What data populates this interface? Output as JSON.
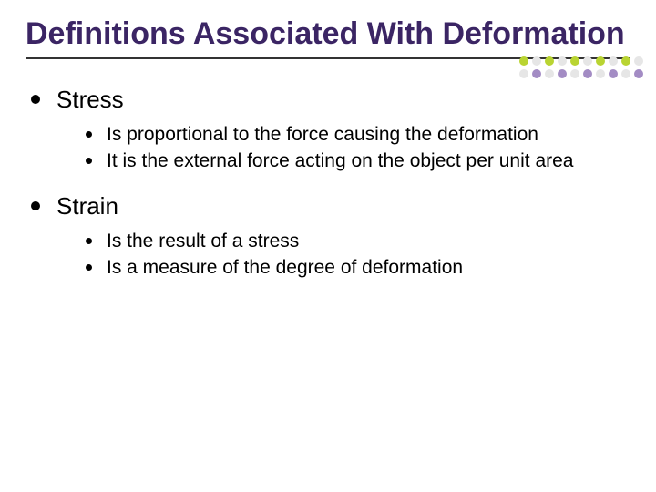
{
  "title": "Definitions Associated With Deformation",
  "colors": {
    "title": "#3b2564",
    "text": "#000000",
    "background": "#ffffff",
    "underline": "#333333"
  },
  "bullets": [
    {
      "label": "Stress",
      "sub": [
        "Is proportional to the force causing the deformation",
        "It is the external force acting on the object per unit area"
      ]
    },
    {
      "label": "Strain",
      "sub": [
        "Is the result of a stress",
        "Is a measure of the degree of deformation"
      ]
    }
  ],
  "decoration": {
    "dot_colors_row1": [
      "#b9d432",
      "#e6e6e6",
      "#b9d432",
      "#e6e6e6",
      "#b9d432",
      "#e6e6e6",
      "#b9d432",
      "#e6e6e6",
      "#b9d432",
      "#e6e6e6"
    ],
    "dot_colors_row2": [
      "#e6e6e6",
      "#a38cc4",
      "#e6e6e6",
      "#a38cc4",
      "#e6e6e6",
      "#a38cc4",
      "#e6e6e6",
      "#a38cc4",
      "#e6e6e6",
      "#a38cc4"
    ]
  }
}
